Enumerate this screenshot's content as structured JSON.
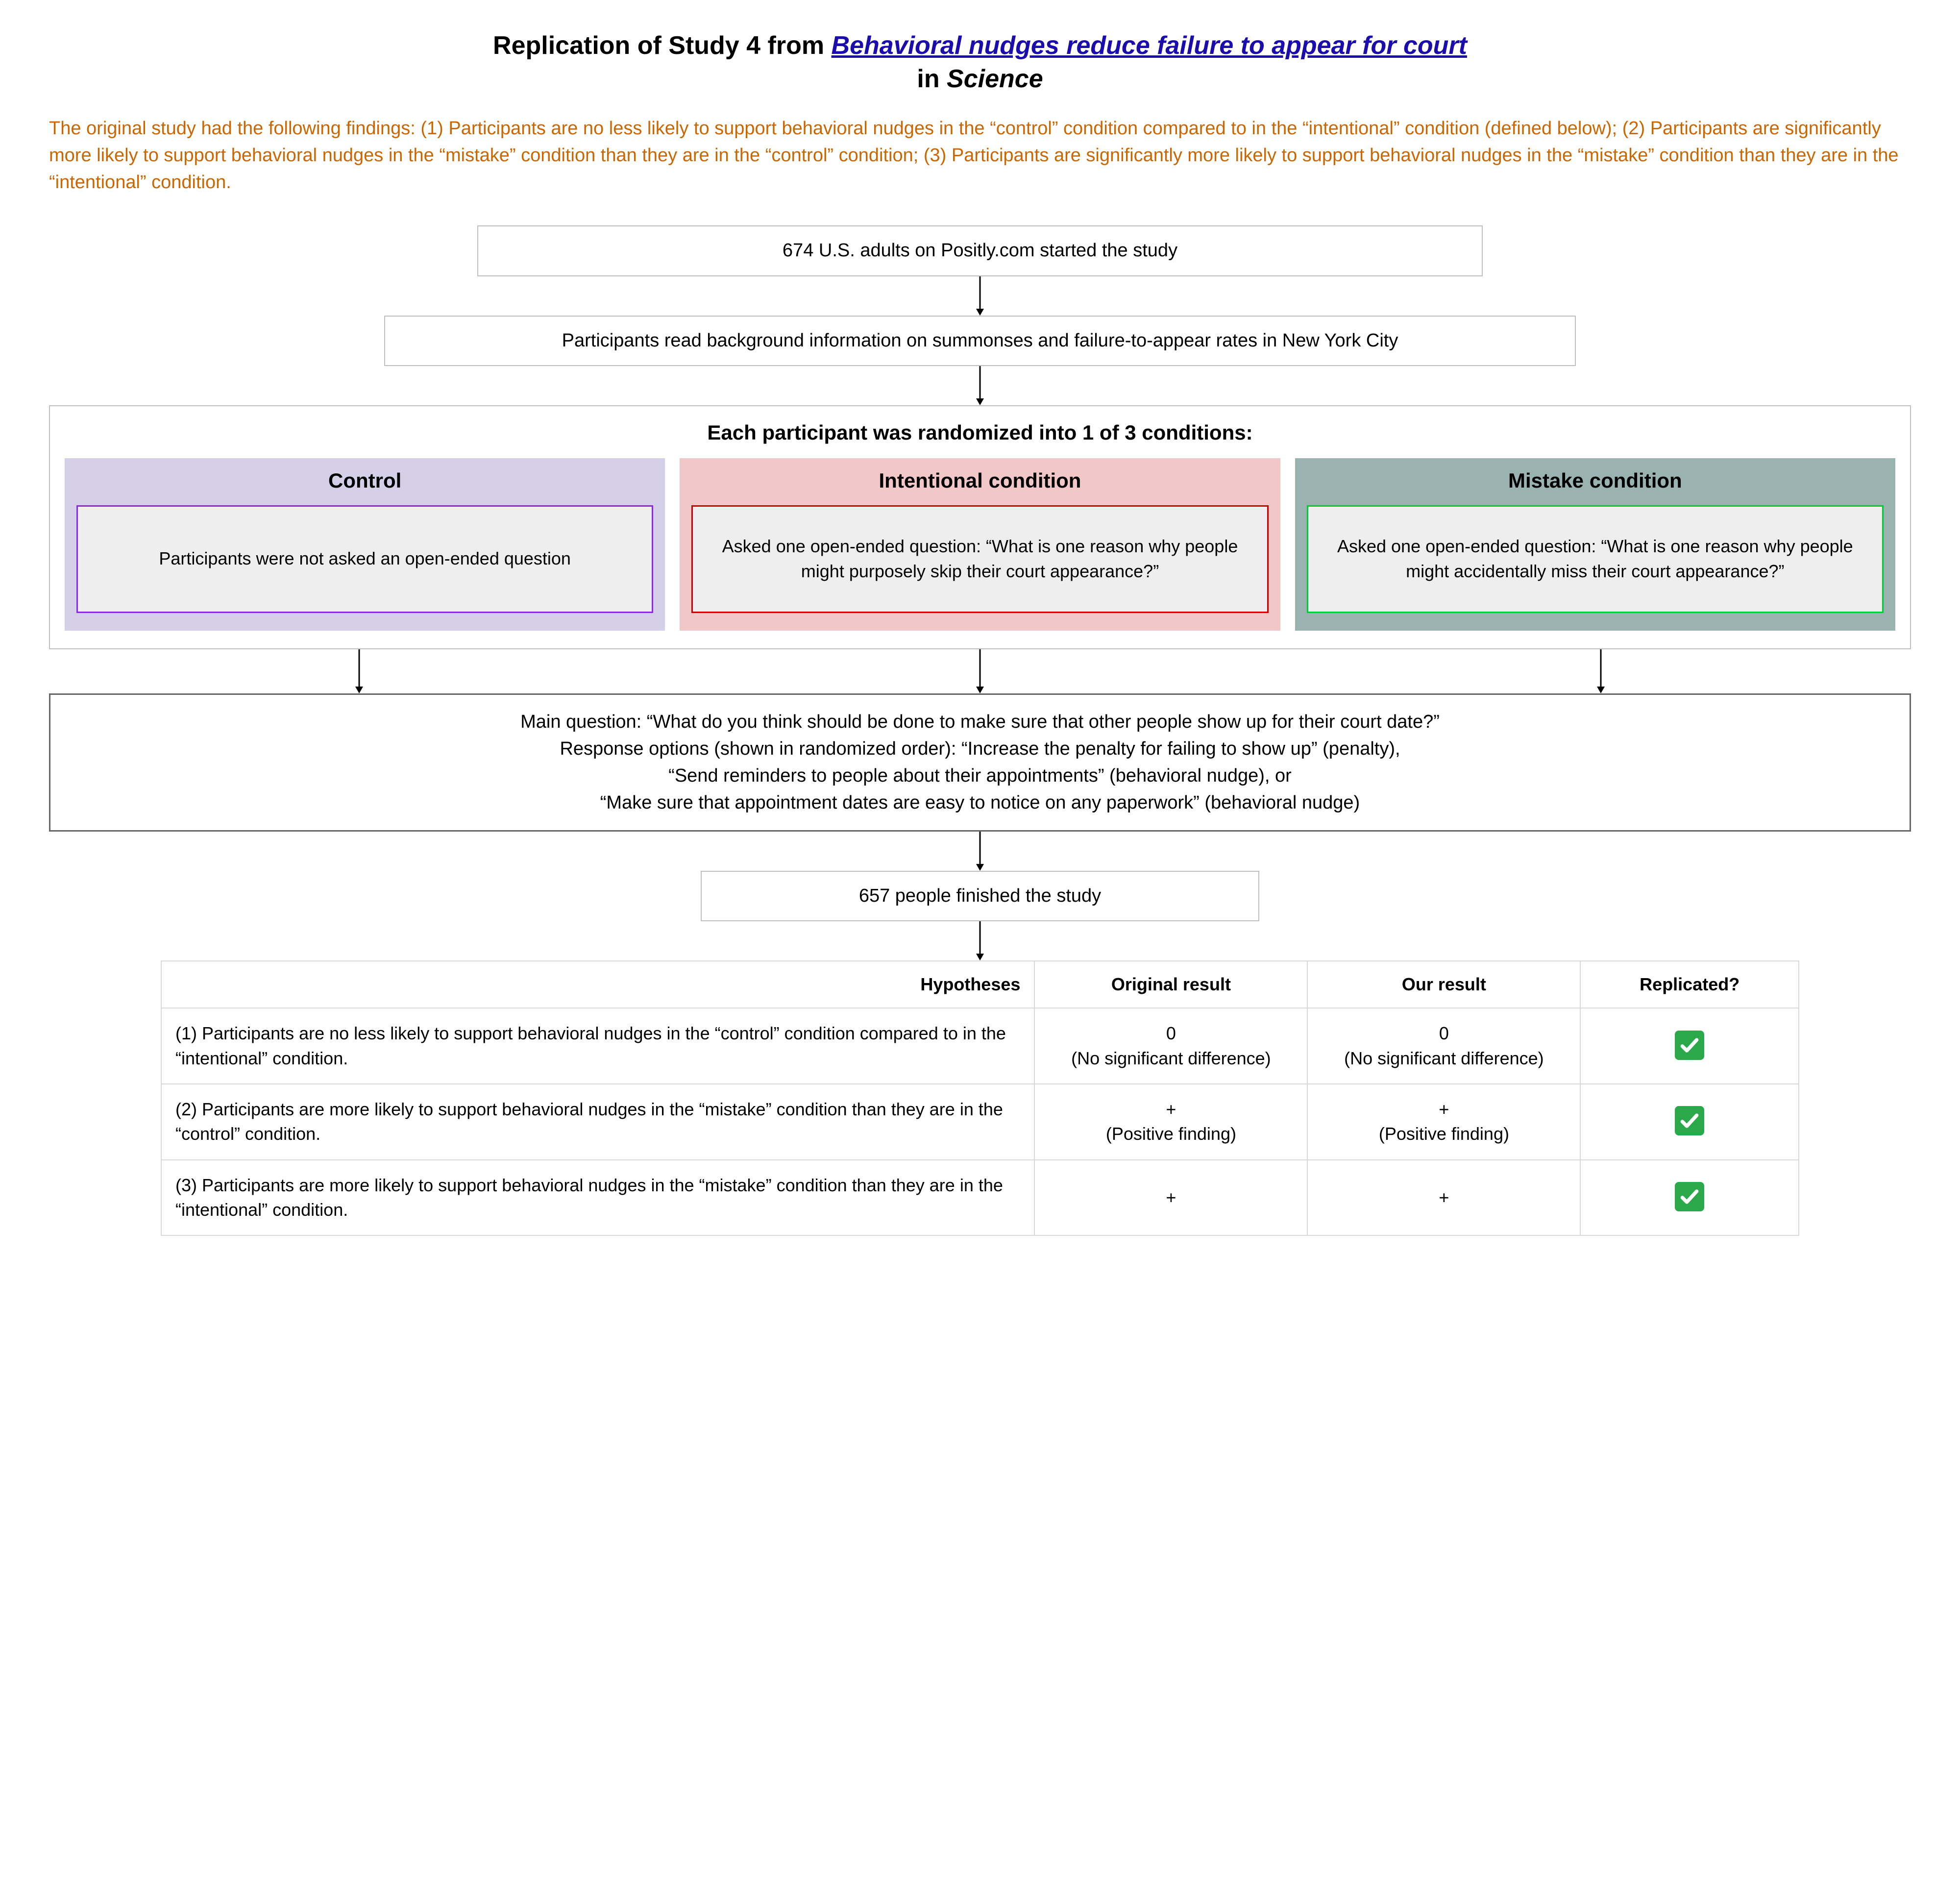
{
  "title": {
    "prefix": "Replication of Study 4 from ",
    "link_text": "Behavioral nudges reduce failure to appear for court",
    "line2_prefix": "in ",
    "journal": "Science"
  },
  "intro_text": "The original study had the following findings: (1) Participants are no less likely to support behavioral nudges in the “control” condition compared to in the “intentional” condition (defined below); (2) Participants are significantly more likely to support behavioral nudges in the “mistake” condition than they are in the “control” condition; (3) Participants are significantly more likely to support behavioral nudges in the “mistake” condition than they are in the “intentional” condition.",
  "flow": {
    "step1": "674 U.S. adults on Positly.com started the study",
    "step2": "Participants read background information on summonses and failure-to-appear rates in New York City",
    "cond_title": "Each participant was randomized into 1 of 3 conditions:",
    "main_question_l1": "Main question: “What do you think should be done to make sure that other people show up for their court date?”",
    "main_question_l2": "Response options (shown in randomized order): “Increase the penalty for failing to show up” (penalty),",
    "main_question_l3": "“Send reminders to people about their appointments” (behavioral nudge), or",
    "main_question_l4": "“Make sure that appointment dates are easy to notice on any paperwork” (behavioral nudge)",
    "finished": "657 people finished the study"
  },
  "conditions": [
    {
      "label": "Control",
      "bg_color": "#d6cfe8",
      "border_color": "#8a2be2",
      "body": "Participants were not asked an open-ended question"
    },
    {
      "label": "Intentional condition",
      "bg_color": "#f2c7c7",
      "border_color": "#cc0000",
      "body": "Asked one open-ended question: “What is one reason why people might purposely skip their court appearance?”"
    },
    {
      "label": "Mistake condition",
      "bg_color": "#9bb3b0",
      "border_color": "#00cc33",
      "body": "Asked one open-ended question: “What is one reason why people might accidentally miss their court appearance?”"
    }
  ],
  "table": {
    "headers": {
      "hypotheses": "Hypotheses",
      "original": "Original result",
      "ours": "Our result",
      "replicated": "Replicated?"
    },
    "rows": [
      {
        "hypothesis": "(1) Participants are no less likely to support behavioral nudges in the “control” condition compared to in the “intentional” condition.",
        "original_symbol": "0",
        "original_note": "(No significant difference)",
        "ours_symbol": "0",
        "ours_note": "(No significant difference)",
        "replicated": true
      },
      {
        "hypothesis": "(2) Participants are more likely to support behavioral nudges in the “mistake” condition than they are in the “control” condition.",
        "original_symbol": "+",
        "original_note": "(Positive finding)",
        "ours_symbol": "+",
        "ours_note": "(Positive finding)",
        "replicated": true
      },
      {
        "hypothesis": "(3) Participants are more likely to support behavioral nudges in the “mistake” condition than they are in the “intentional” condition.",
        "original_symbol": "+",
        "original_note": "",
        "ours_symbol": "+",
        "ours_note": "",
        "replicated": true
      }
    ]
  },
  "styling": {
    "arrow_color": "#000000",
    "intro_color": "#cc6600",
    "link_color": "#1a0dab",
    "table_border": "#d9d9d9",
    "box_border": "#bfbfbf",
    "check_bg": "#2ba84a"
  }
}
